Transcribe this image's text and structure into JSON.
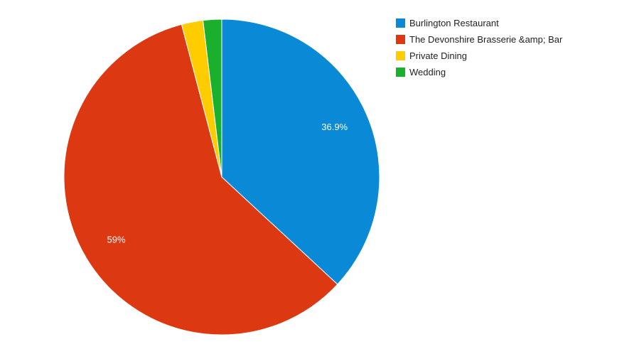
{
  "chart_data": {
    "type": "pie",
    "title": "",
    "slices": [
      {
        "label": "Burlington Restaurant",
        "value": 36.9,
        "color": "#0a8ad6",
        "data_label": "36.9%"
      },
      {
        "label": "The Devonshire Brasserie &amp; Bar",
        "value": 59.0,
        "color": "#dc3912",
        "data_label": "59%"
      },
      {
        "label": "Private Dining",
        "value": 2.2,
        "color": "#ffcc00",
        "data_label": ""
      },
      {
        "label": "Wedding",
        "value": 1.9,
        "color": "#1aaf2c",
        "data_label": ""
      }
    ],
    "legend_position": "right",
    "start_angle_deg": 0,
    "direction": "clockwise"
  }
}
